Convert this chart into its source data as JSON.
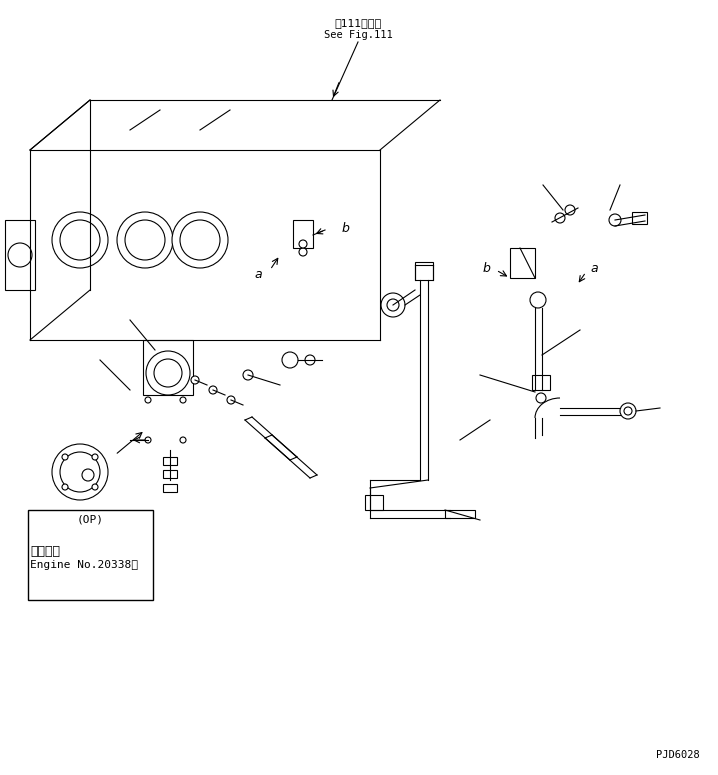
{
  "bg_color": "#ffffff",
  "line_color": "#000000",
  "fig_width": 7.18,
  "fig_height": 7.75,
  "dpi": 100,
  "top_text_jp": "第111図参照",
  "top_text_en": "See Fig.111",
  "bottom_text_jp": "適用号機",
  "bottom_text_en": "Engine No.20338～",
  "op_label": "(OP)",
  "label_a": "a",
  "label_b": "b",
  "watermark": "PJD6028"
}
